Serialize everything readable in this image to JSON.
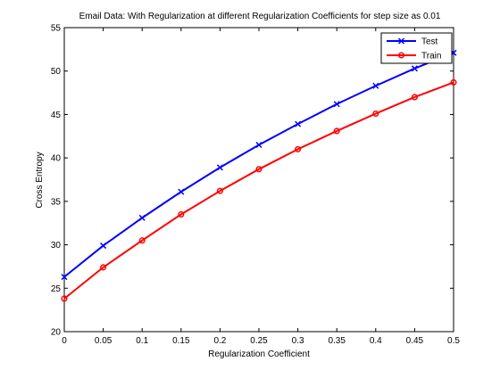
{
  "chart_data": {
    "type": "line",
    "title": "Email Data: With Regularization at different Regularization Coefficients for step size as 0.01",
    "xlabel": "Regularization Coefficient",
    "ylabel": "Cross Entropy",
    "xlim": [
      0,
      0.5
    ],
    "ylim": [
      20,
      55
    ],
    "xticks": [
      "0",
      "0.05",
      "0.1",
      "0.15",
      "0.2",
      "0.25",
      "0.3",
      "0.35",
      "0.4",
      "0.45",
      "0.5"
    ],
    "yticks": [
      "20",
      "25",
      "30",
      "35",
      "40",
      "45",
      "50",
      "55"
    ],
    "grid": false,
    "legend_position": "top-right",
    "x": [
      0,
      0.05,
      0.1,
      0.15,
      0.2,
      0.25,
      0.3,
      0.35,
      0.4,
      0.45,
      0.5
    ],
    "series": [
      {
        "name": "Test",
        "color": "#0000ff",
        "marker": "x-cross",
        "values": [
          26.3,
          29.9,
          33.1,
          36.1,
          38.9,
          41.5,
          43.9,
          46.2,
          48.3,
          50.3,
          52.1
        ]
      },
      {
        "name": "Train",
        "color": "#ff0000",
        "marker": "circle",
        "values": [
          23.8,
          27.4,
          30.5,
          33.5,
          36.2,
          38.7,
          41.0,
          43.1,
          45.1,
          47.0,
          48.7
        ]
      }
    ]
  }
}
